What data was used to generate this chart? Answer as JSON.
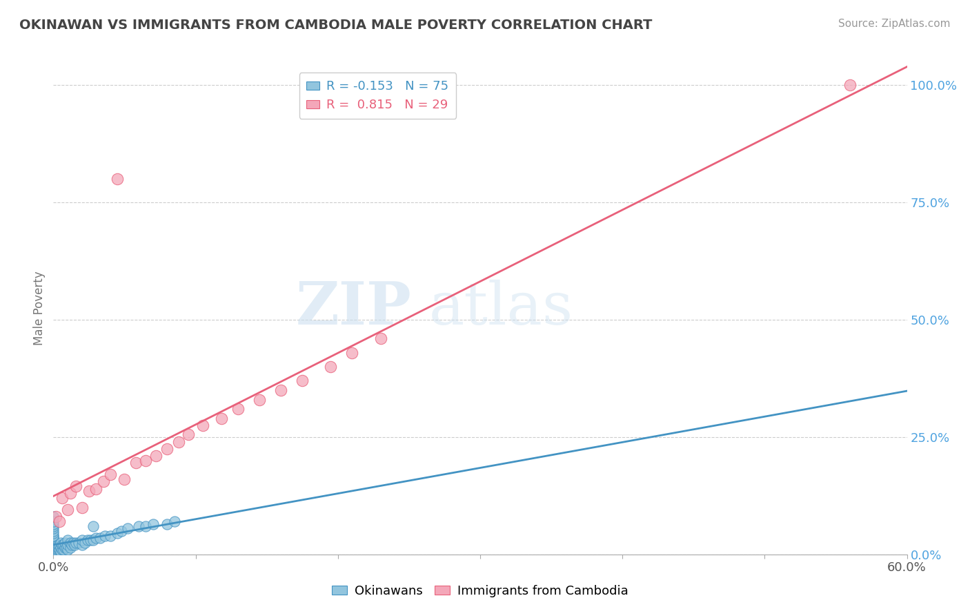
{
  "title": "OKINAWAN VS IMMIGRANTS FROM CAMBODIA MALE POVERTY CORRELATION CHART",
  "source": "Source: ZipAtlas.com",
  "ylabel": "Male Poverty",
  "xlim": [
    0.0,
    0.6
  ],
  "ylim": [
    0.0,
    1.05
  ],
  "x_ticks": [
    0.0,
    0.1,
    0.2,
    0.3,
    0.4,
    0.5,
    0.6
  ],
  "x_tick_labels": [
    "0.0%",
    "",
    "",
    "",
    "",
    "",
    "60.0%"
  ],
  "y_tick_right": [
    0.0,
    0.25,
    0.5,
    0.75,
    1.0
  ],
  "y_tick_right_labels": [
    "0.0%",
    "25.0%",
    "50.0%",
    "75.0%",
    "100.0%"
  ],
  "legend_r_blue": "-0.153",
  "legend_n_blue": "75",
  "legend_r_pink": "0.815",
  "legend_n_pink": "29",
  "blue_color": "#92c5de",
  "pink_color": "#f4a7b9",
  "blue_line_color": "#4393c3",
  "pink_line_color": "#e8607a",
  "watermark_zip": "ZIP",
  "watermark_atlas": "atlas",
  "bg_color": "#ffffff",
  "okinawan_x": [
    0.0,
    0.0,
    0.0,
    0.0,
    0.0,
    0.0,
    0.0,
    0.0,
    0.0,
    0.0,
    0.0,
    0.0,
    0.0,
    0.0,
    0.0,
    0.0,
    0.0,
    0.0,
    0.0,
    0.0,
    0.0,
    0.0,
    0.0,
    0.0,
    0.0,
    0.0,
    0.0,
    0.0,
    0.0,
    0.0,
    0.003,
    0.003,
    0.003,
    0.003,
    0.004,
    0.004,
    0.005,
    0.005,
    0.005,
    0.006,
    0.006,
    0.007,
    0.007,
    0.008,
    0.008,
    0.009,
    0.01,
    0.01,
    0.01,
    0.012,
    0.012,
    0.013,
    0.014,
    0.015,
    0.016,
    0.018,
    0.02,
    0.02,
    0.022,
    0.024,
    0.026,
    0.028,
    0.03,
    0.033,
    0.036,
    0.04,
    0.045,
    0.048,
    0.052,
    0.06,
    0.065,
    0.07,
    0.08,
    0.085,
    0.028
  ],
  "okinawan_y": [
    0.0,
    0.0,
    0.0,
    0.0,
    0.0,
    0.005,
    0.005,
    0.005,
    0.01,
    0.01,
    0.01,
    0.015,
    0.015,
    0.02,
    0.02,
    0.025,
    0.025,
    0.03,
    0.03,
    0.035,
    0.035,
    0.04,
    0.04,
    0.045,
    0.05,
    0.055,
    0.06,
    0.065,
    0.07,
    0.08,
    0.005,
    0.01,
    0.015,
    0.02,
    0.01,
    0.02,
    0.005,
    0.015,
    0.025,
    0.01,
    0.02,
    0.01,
    0.02,
    0.015,
    0.025,
    0.015,
    0.01,
    0.02,
    0.03,
    0.015,
    0.025,
    0.02,
    0.025,
    0.02,
    0.025,
    0.025,
    0.02,
    0.03,
    0.025,
    0.03,
    0.03,
    0.03,
    0.035,
    0.035,
    0.04,
    0.04,
    0.045,
    0.05,
    0.055,
    0.06,
    0.06,
    0.065,
    0.065,
    0.07,
    0.06
  ],
  "cambodia_x": [
    0.002,
    0.004,
    0.006,
    0.01,
    0.012,
    0.016,
    0.02,
    0.025,
    0.03,
    0.035,
    0.04,
    0.05,
    0.058,
    0.065,
    0.072,
    0.08,
    0.088,
    0.095,
    0.105,
    0.118,
    0.13,
    0.145,
    0.16,
    0.175,
    0.195,
    0.045,
    0.21,
    0.23,
    0.56
  ],
  "cambodia_y": [
    0.08,
    0.07,
    0.12,
    0.095,
    0.13,
    0.145,
    0.1,
    0.135,
    0.14,
    0.155,
    0.17,
    0.16,
    0.195,
    0.2,
    0.21,
    0.225,
    0.24,
    0.255,
    0.275,
    0.29,
    0.31,
    0.33,
    0.35,
    0.37,
    0.4,
    0.8,
    0.43,
    0.46,
    1.0
  ]
}
